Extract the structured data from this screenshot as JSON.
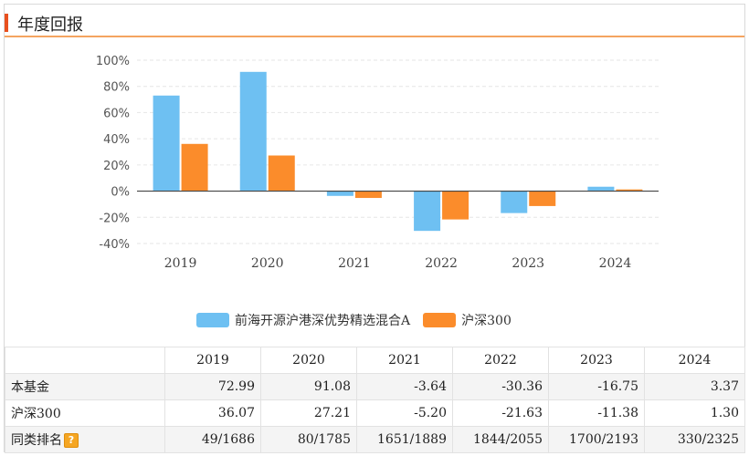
{
  "header": {
    "title": "年度回报"
  },
  "colors": {
    "fund": "#6ec0f2",
    "index": "#fb8c2b",
    "accent": "#e8501e",
    "grid": "#e6e6e6"
  },
  "chart_data": {
    "type": "bar",
    "categories": [
      "2019",
      "2020",
      "2021",
      "2022",
      "2023",
      "2024"
    ],
    "series": [
      {
        "name": "前海开源沪港深优势精选混合A",
        "values": [
          72.99,
          91.08,
          -3.64,
          -30.36,
          -16.75,
          3.37
        ]
      },
      {
        "name": "沪深300",
        "values": [
          36.07,
          27.21,
          -5.2,
          -21.63,
          -11.38,
          1.3
        ]
      }
    ],
    "ylim": [
      -40,
      100
    ],
    "yticks": [
      100,
      80,
      60,
      40,
      20,
      0,
      -20,
      -40
    ],
    "ytick_labels": [
      "100%",
      "80%",
      "60%",
      "40%",
      "20%",
      "0%",
      "-20%",
      "-40%"
    ],
    "grid": true,
    "legend_position": "bottom"
  },
  "table": {
    "corner": "",
    "years": [
      "2019",
      "2020",
      "2021",
      "2022",
      "2023",
      "2024"
    ],
    "rows": [
      {
        "label": "本基金",
        "values": [
          "72.99",
          "91.08",
          "-3.64",
          "-30.36",
          "-16.75",
          "3.37"
        ]
      },
      {
        "label": "沪深300",
        "values": [
          "36.07",
          "27.21",
          "-5.20",
          "-21.63",
          "-11.38",
          "1.30"
        ]
      },
      {
        "label": "同类排名",
        "help": "?",
        "values": [
          "49/1686",
          "80/1785",
          "1651/1889",
          "1844/2055",
          "1700/2193",
          "330/2325"
        ]
      }
    ]
  }
}
